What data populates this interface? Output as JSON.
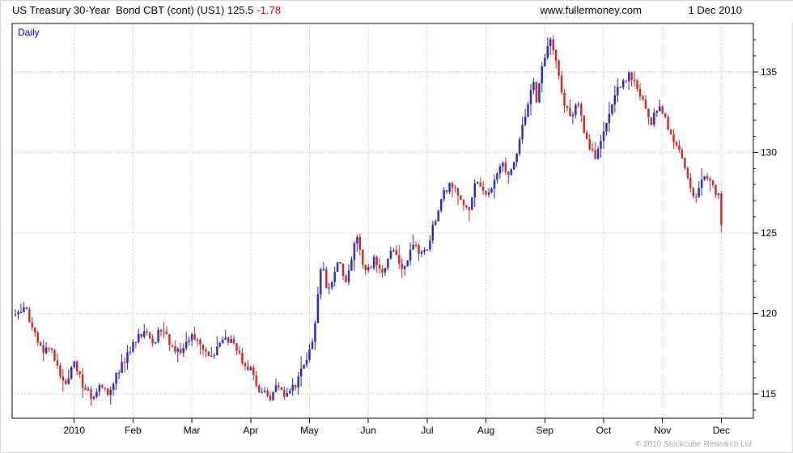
{
  "header": {
    "title": "US Treasury 30-Year  Bond CBT (cont) (US1) 125.5",
    "change": "-1.78",
    "website": "www.fullermoney.com",
    "date": "1 Dec 2010"
  },
  "plot_label": "Daily",
  "copyright": "© 2010 Stockcube Research Ltd",
  "chart_data": {
    "type": "candlestick",
    "title": "US Treasury 30-Year Bond CBT (cont) (US1)",
    "timeframe": "Daily",
    "last_price": 125.5,
    "change": -1.78,
    "up_color": "#2222bb",
    "down_color": "#cc2222",
    "grid_color": "#c4c4c4",
    "axis_color": "#000000",
    "y_ticks": [
      115,
      120,
      125,
      130,
      135
    ],
    "y_min": 113.5,
    "y_max": 138.0,
    "x_ticks": [
      {
        "m": 1,
        "label": "2010"
      },
      {
        "m": 2,
        "label": "Feb"
      },
      {
        "m": 3,
        "label": "Mar"
      },
      {
        "m": 4,
        "label": "Apr"
      },
      {
        "m": 5,
        "label": "May"
      },
      {
        "m": 6,
        "label": "Jun"
      },
      {
        "m": 7,
        "label": "Jul"
      },
      {
        "m": 8,
        "label": "Aug"
      },
      {
        "m": 9,
        "label": "Sep"
      },
      {
        "m": 10,
        "label": "Oct"
      },
      {
        "m": 11,
        "label": "Nov"
      },
      {
        "m": 12,
        "label": "Dec"
      }
    ],
    "days_per_month": 21,
    "trading_days": 253,
    "anchor_points": [
      [
        0,
        119.9
      ],
      [
        0.15,
        120.4
      ],
      [
        0.3,
        119.2
      ],
      [
        0.45,
        117.6
      ],
      [
        0.55,
        118.3
      ],
      [
        0.7,
        116.6
      ],
      [
        0.85,
        115.6
      ],
      [
        1,
        116.9
      ],
      [
        1.15,
        115.6
      ],
      [
        1.3,
        114.9
      ],
      [
        1.45,
        115.4
      ],
      [
        1.6,
        115.1
      ],
      [
        1.75,
        116.4
      ],
      [
        1.9,
        117.4
      ],
      [
        2.05,
        118.3
      ],
      [
        2.2,
        118.9
      ],
      [
        2.35,
        118.2
      ],
      [
        2.5,
        119.3
      ],
      [
        2.65,
        118.0
      ],
      [
        2.8,
        117.4
      ],
      [
        3,
        118.5
      ],
      [
        3.15,
        117.9
      ],
      [
        3.3,
        117.3
      ],
      [
        3.5,
        118.2
      ],
      [
        3.65,
        118.5
      ],
      [
        3.8,
        117.4
      ],
      [
        4,
        116.4
      ],
      [
        4.15,
        115.3
      ],
      [
        4.3,
        114.7
      ],
      [
        4.45,
        115.5
      ],
      [
        4.6,
        114.9
      ],
      [
        4.75,
        115.6
      ],
      [
        4.9,
        116.6
      ],
      [
        5,
        117.6
      ],
      [
        5.08,
        119.0
      ],
      [
        5.15,
        121.5
      ],
      [
        5.22,
        123.3
      ],
      [
        5.3,
        121.2
      ],
      [
        5.4,
        122.2
      ],
      [
        5.5,
        123.2
      ],
      [
        5.6,
        121.8
      ],
      [
        5.7,
        123.0
      ],
      [
        5.8,
        125.0
      ],
      [
        5.9,
        122.8
      ],
      [
        6,
        122.6
      ],
      [
        6.1,
        123.3
      ],
      [
        6.25,
        122.4
      ],
      [
        6.4,
        124.4
      ],
      [
        6.5,
        123.3
      ],
      [
        6.6,
        122.8
      ],
      [
        6.75,
        124.3
      ],
      [
        6.9,
        123.6
      ],
      [
        7,
        124.0
      ],
      [
        7.1,
        125.3
      ],
      [
        7.25,
        127.2
      ],
      [
        7.4,
        128.3
      ],
      [
        7.55,
        126.9
      ],
      [
        7.7,
        126.3
      ],
      [
        7.85,
        128.4
      ],
      [
        7.95,
        127.4
      ],
      [
        8.1,
        127.8
      ],
      [
        8.25,
        129.3
      ],
      [
        8.4,
        128.6
      ],
      [
        8.55,
        130.5
      ],
      [
        8.7,
        132.8
      ],
      [
        8.8,
        134.4
      ],
      [
        8.85,
        133.1
      ],
      [
        9,
        136.0
      ],
      [
        9.1,
        137.0
      ],
      [
        9.2,
        135.3
      ],
      [
        9.3,
        133.4
      ],
      [
        9.45,
        132.2
      ],
      [
        9.55,
        133.3
      ],
      [
        9.7,
        130.9
      ],
      [
        9.85,
        129.8
      ],
      [
        10,
        131.3
      ],
      [
        10.15,
        133.2
      ],
      [
        10.3,
        134.2
      ],
      [
        10.45,
        134.8
      ],
      [
        10.6,
        133.9
      ],
      [
        10.7,
        132.6
      ],
      [
        10.8,
        131.8
      ],
      [
        10.95,
        132.9
      ],
      [
        11.1,
        131.4
      ],
      [
        11.25,
        130.4
      ],
      [
        11.4,
        128.9
      ],
      [
        11.55,
        127.2
      ],
      [
        11.7,
        128.5
      ],
      [
        11.85,
        127.9
      ],
      [
        11.95,
        127.3
      ],
      [
        12.05,
        125.5
      ]
    ]
  }
}
